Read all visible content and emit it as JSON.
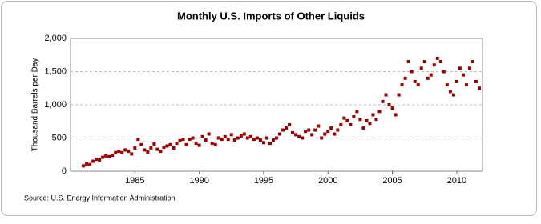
{
  "chart_data": {
    "type": "scatter",
    "title": "Monthly U.S. Imports of Other Liquids",
    "y_label": "Thousand Barrels per Day",
    "source": "Source: U.S. Energy Information Administration",
    "xlim": [
      1980,
      2012
    ],
    "xticks": [
      1985,
      1990,
      1995,
      2000,
      2005,
      2010
    ],
    "ylim": [
      0,
      2000
    ],
    "yticks": [
      0,
      500,
      {
        "value": 1000,
        "label": "1,000"
      },
      {
        "value": 1500,
        "label": "1,500"
      },
      {
        "value": 2000,
        "label": "2,000"
      }
    ],
    "grid": true,
    "series": [
      {
        "color": "#990000",
        "x": [
          1981,
          1981.25,
          1981.5,
          1981.75,
          1982,
          1982.25,
          1982.5,
          1982.75,
          1983,
          1983.25,
          1983.5,
          1983.75,
          1984,
          1984.25,
          1984.5,
          1984.75,
          1985,
          1985.25,
          1985.5,
          1985.75,
          1986,
          1986.25,
          1986.5,
          1986.75,
          1987,
          1987.25,
          1987.5,
          1987.75,
          1988,
          1988.25,
          1988.5,
          1988.75,
          1989,
          1989.25,
          1989.5,
          1989.75,
          1990,
          1990.25,
          1990.5,
          1990.75,
          1991,
          1991.25,
          1991.5,
          1991.75,
          1992,
          1992.25,
          1992.5,
          1992.75,
          1993,
          1993.25,
          1993.5,
          1993.75,
          1994,
          1994.25,
          1994.5,
          1994.75,
          1995,
          1995.25,
          1995.5,
          1995.75,
          1996,
          1996.25,
          1996.5,
          1996.75,
          1997,
          1997.25,
          1997.5,
          1997.75,
          1998,
          1998.25,
          1998.5,
          1998.75,
          1999,
          1999.25,
          1999.5,
          1999.75,
          2000,
          2000.25,
          2000.5,
          2000.75,
          2001,
          2001.25,
          2001.5,
          2001.75,
          2002,
          2002.25,
          2002.5,
          2002.75,
          2003,
          2003.25,
          2003.5,
          2003.75,
          2004,
          2004.25,
          2004.5,
          2004.75,
          2005,
          2005.25,
          2005.5,
          2005.75,
          2006,
          2006.25,
          2006.5,
          2006.75,
          2007,
          2007.25,
          2007.5,
          2007.75,
          2008,
          2008.25,
          2008.5,
          2008.75,
          2009,
          2009.25,
          2009.5,
          2009.75,
          2010,
          2010.25,
          2010.5,
          2010.75,
          2011,
          2011.25,
          2011.5,
          2011.75
        ],
        "values": [
          80,
          110,
          100,
          150,
          180,
          170,
          210,
          230,
          220,
          240,
          280,
          300,
          280,
          320,
          300,
          260,
          350,
          480,
          400,
          320,
          290,
          350,
          410,
          330,
          300,
          360,
          380,
          400,
          350,
          420,
          460,
          480,
          400,
          480,
          500,
          420,
          390,
          520,
          470,
          560,
          420,
          400,
          500,
          480,
          520,
          480,
          550,
          470,
          500,
          530,
          560,
          500,
          520,
          480,
          500,
          470,
          430,
          500,
          420,
          470,
          500,
          560,
          620,
          650,
          700,
          580,
          550,
          520,
          500,
          600,
          620,
          550,
          620,
          680,
          500,
          560,
          600,
          650,
          560,
          620,
          700,
          800,
          760,
          700,
          820,
          900,
          780,
          650,
          760,
          720,
          850,
          780,
          900,
          1050,
          1150,
          1000,
          950,
          850,
          1150,
          1300,
          1400,
          1650,
          1500,
          1350,
          1300,
          1550,
          1650,
          1400,
          1450,
          1600,
          1700,
          1650,
          1500,
          1300,
          1200,
          1150,
          1350,
          1550,
          1450,
          1300,
          1550,
          1650,
          1350,
          1250
        ]
      }
    ]
  }
}
